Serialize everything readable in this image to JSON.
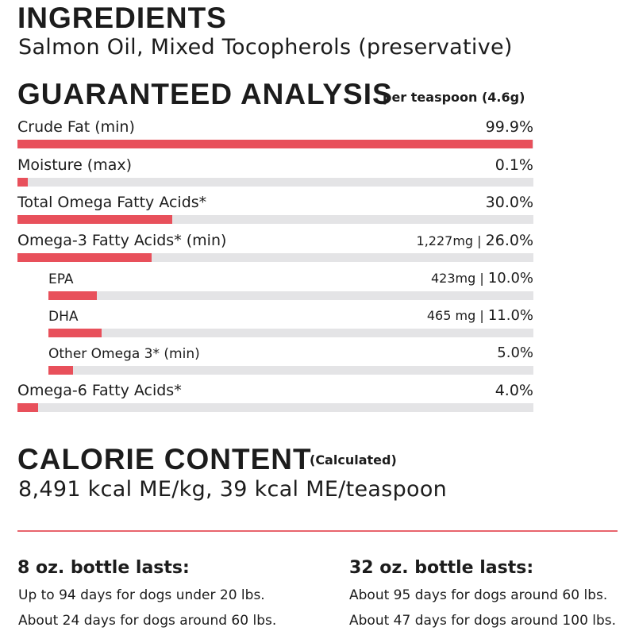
{
  "ingredients": {
    "heading": "INGREDIENTS",
    "text": "Salmon Oil, Mixed Tocopherols (preservative)"
  },
  "analysis": {
    "heading": "GUARANTEED ANALYSIS",
    "subheading": "per teaspoon (4.6g)",
    "rows": [
      {
        "label": "Crude Fat (min)",
        "amount": "",
        "value": "99.9%",
        "percent": 99.9
      },
      {
        "label": "Moisture (max)",
        "amount": "",
        "value": "0.1%",
        "percent": 0.1
      },
      {
        "label": "Total Omega Fatty Acids*",
        "amount": "",
        "value": "30.0%",
        "percent": 30.0
      },
      {
        "label": "Omega-3 Fatty Acids* (min)",
        "amount": "1,227mg | ",
        "value": "26.0%",
        "percent": 26.0
      },
      {
        "label": "EPA",
        "amount": "423mg | ",
        "value": "10.0%",
        "percent": 10.0
      },
      {
        "label": "DHA",
        "amount": "465 mg | ",
        "value": "11.0%",
        "percent": 11.0
      },
      {
        "label": "Other Omega 3* (min)",
        "amount": "",
        "value": "5.0%",
        "percent": 5.0
      },
      {
        "label": "Omega-6 Fatty Acids*",
        "amount": "",
        "value": "4.0%",
        "percent": 4.0
      }
    ]
  },
  "calorie": {
    "heading": "CALORIE CONTENT",
    "subheading": "(Calculated)",
    "text": "8,491 kcal ME/kg, 39 kcal ME/teaspoon"
  },
  "bottles": [
    {
      "heading": "8 oz. bottle lasts:",
      "lines": [
        "Up to 94 days for dogs under 20 lbs.",
        "About 24 days for dogs around 60 lbs."
      ]
    },
    {
      "heading": "32 oz. bottle lasts:",
      "lines": [
        "About 95 days for dogs around 60 lbs.",
        "About 47 days for dogs around 100 lbs."
      ]
    }
  ],
  "colors": {
    "bar_fill": "#e8505b",
    "bar_track": "#e4e4e6",
    "divider": "#e8646c"
  }
}
